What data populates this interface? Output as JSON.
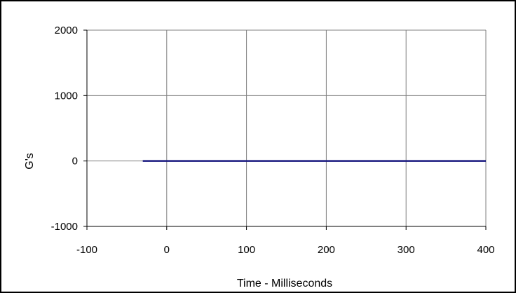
{
  "chart_data": {
    "type": "line",
    "title": "",
    "xlabel": "Time - Milliseconds",
    "ylabel": "G's",
    "xlim": [
      -100,
      400
    ],
    "ylim": [
      -1000,
      2000
    ],
    "x_ticks": [
      -100,
      0,
      100,
      200,
      300,
      400
    ],
    "y_ticks": [
      -1000,
      0,
      1000,
      2000
    ],
    "x_tick_labels": [
      "-100",
      "0",
      "100",
      "200",
      "300",
      "400"
    ],
    "y_tick_labels": [
      "-1000",
      "0",
      "1000",
      "2000"
    ],
    "grid": true,
    "legend": "none",
    "colors": {
      "series": "#1a1a80",
      "grid": "#808080",
      "axis": "#000000",
      "frame": "#000000"
    },
    "series": [
      {
        "x": [
          -30,
          0,
          50,
          100,
          150,
          200,
          250,
          300,
          350,
          400
        ],
        "y": [
          0,
          0,
          0,
          0,
          0,
          0,
          0,
          0,
          0,
          0
        ]
      }
    ]
  }
}
